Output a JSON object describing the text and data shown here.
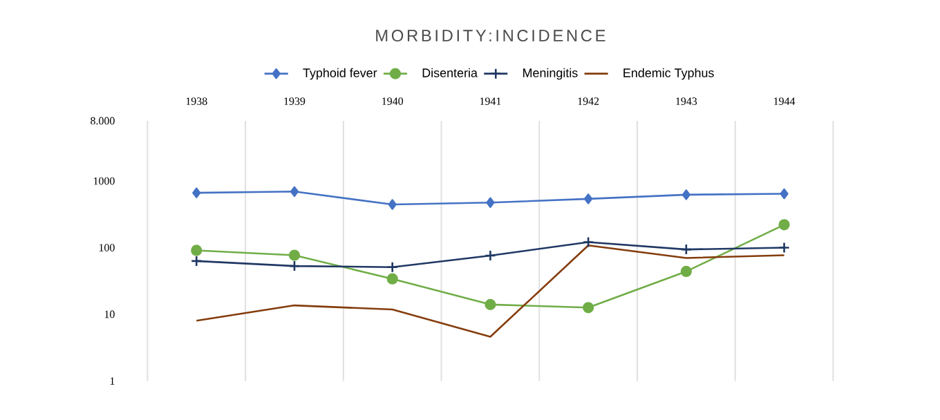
{
  "chart_data": {
    "type": "line",
    "title": "MORBIDITY:INCIDENCE",
    "categories": [
      "1938",
      "1939",
      "1940",
      "1941",
      "1942",
      "1943",
      "1944"
    ],
    "series": [
      {
        "name": "Typhoid fever",
        "color": "#4472c4",
        "marker": "diamond",
        "values": [
          665,
          695,
          445,
          475,
          540,
          623,
          645
        ]
      },
      {
        "name": "Disenteria",
        "color": "#70ad47",
        "marker": "circle",
        "values": [
          91,
          77,
          34,
          14,
          12.6,
          44,
          221
        ]
      },
      {
        "name": "Meningitis",
        "color": "#203864",
        "marker": "cross",
        "values": [
          63,
          53,
          51,
          76,
          121,
          94,
          100
        ]
      },
      {
        "name": "Endemic Typhus",
        "color": "#843c0c",
        "marker": "none",
        "values": [
          8,
          13.6,
          11.8,
          4.6,
          108,
          70,
          77
        ]
      }
    ],
    "log": "y",
    "ylim": [
      1,
      8000
    ],
    "yticks": [
      1,
      10,
      100,
      1000,
      {
        "value": 8000,
        "label": "8.000"
      }
    ],
    "grid": "x",
    "legend": "top",
    "line_style": "solid"
  }
}
